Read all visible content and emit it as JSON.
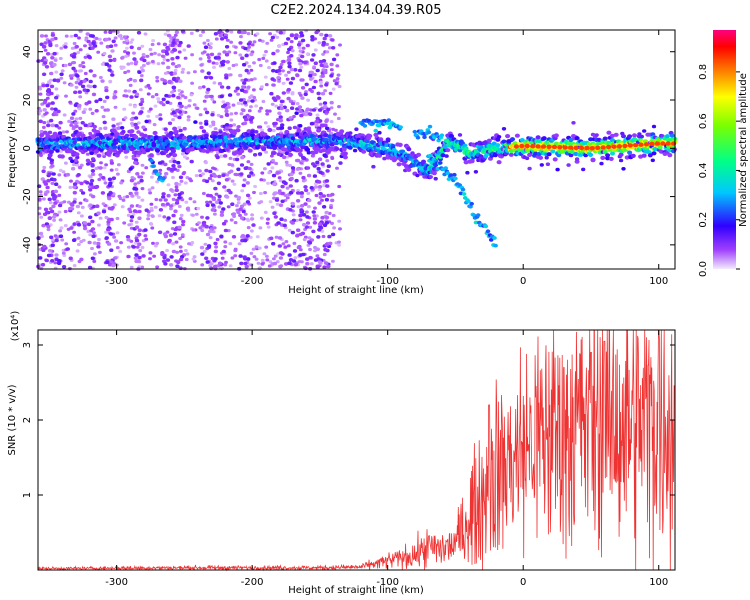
{
  "title": "C2E2.2024.134.04.39.R05",
  "chart_data": [
    {
      "type": "heatmap",
      "xlabel": "Height of straight line (km)",
      "ylabel": "Frequency (Hz)",
      "xlim": [
        -358,
        112
      ],
      "ylim": [
        -50,
        49
      ],
      "xticks": [
        -300,
        -200,
        -100,
        0,
        100
      ],
      "yticks": [
        -40,
        -20,
        0,
        20,
        40
      ],
      "colorbar": {
        "label": "Normalized spectral amplitude",
        "range": [
          0,
          0.97
        ],
        "ticks": [
          "0.0",
          "0.2",
          "0.4",
          "0.6",
          "0.8"
        ],
        "colormap": "rainbow (purple-blue-cyan-green-yellow-red-magenta)"
      },
      "ridge": {
        "x": [
          -355,
          -300,
          -270,
          -200,
          -140,
          -120,
          -100,
          -85,
          -75,
          -70,
          -55,
          -40,
          -20,
          0,
          50,
          100,
          112
        ],
        "y": [
          2,
          2,
          2,
          3,
          3,
          2,
          0,
          -4,
          -8,
          -10,
          3,
          -2,
          0,
          1,
          0,
          2,
          2
        ]
      },
      "secondary_branches": [
        {
          "x": [
            -120,
            -100,
            -90
          ],
          "y": [
            10,
            11,
            8
          ]
        },
        {
          "x": [
            -80,
            -70,
            -60
          ],
          "y": [
            7,
            6,
            4
          ]
        },
        {
          "x": [
            -70,
            -55,
            -45,
            -35,
            -20
          ],
          "y": [
            -4,
            -10,
            -18,
            -28,
            -40
          ]
        },
        {
          "x": [
            -275,
            -265
          ],
          "y": [
            -5,
            -14
          ]
        }
      ],
      "grid": false
    },
    {
      "type": "line",
      "xlabel": "Height of straight line (km)",
      "ylabel": "SNR (10 * v/v)",
      "yunit": "(x10⁴)",
      "xlim": [
        -358,
        112
      ],
      "ylim": [
        0,
        3.2
      ],
      "xticks": [
        -300,
        -200,
        -100,
        0,
        100
      ],
      "yticks": [
        1,
        2,
        3
      ],
      "series_color": "#ee3333",
      "envelope": {
        "x": [
          -358,
          -250,
          -150,
          -120,
          -100,
          -80,
          -70,
          -60,
          -50,
          -40,
          -30,
          -20,
          -10,
          0,
          20,
          40,
          60,
          80,
          100,
          112
        ],
        "y": [
          0.02,
          0.03,
          0.03,
          0.04,
          0.12,
          0.2,
          0.3,
          0.28,
          0.35,
          0.7,
          1.0,
          1.3,
          1.45,
          1.6,
          1.85,
          1.95,
          1.95,
          1.95,
          2.0,
          2.0
        ]
      },
      "peaks": [
        {
          "x": 60,
          "y": 3.05
        },
        {
          "x": 100,
          "y": 3.2
        },
        {
          "x": 50,
          "y": 2.9
        },
        {
          "x": 30,
          "y": 2.7
        },
        {
          "x": -25,
          "y": 2.2
        }
      ],
      "grid": false
    }
  ]
}
